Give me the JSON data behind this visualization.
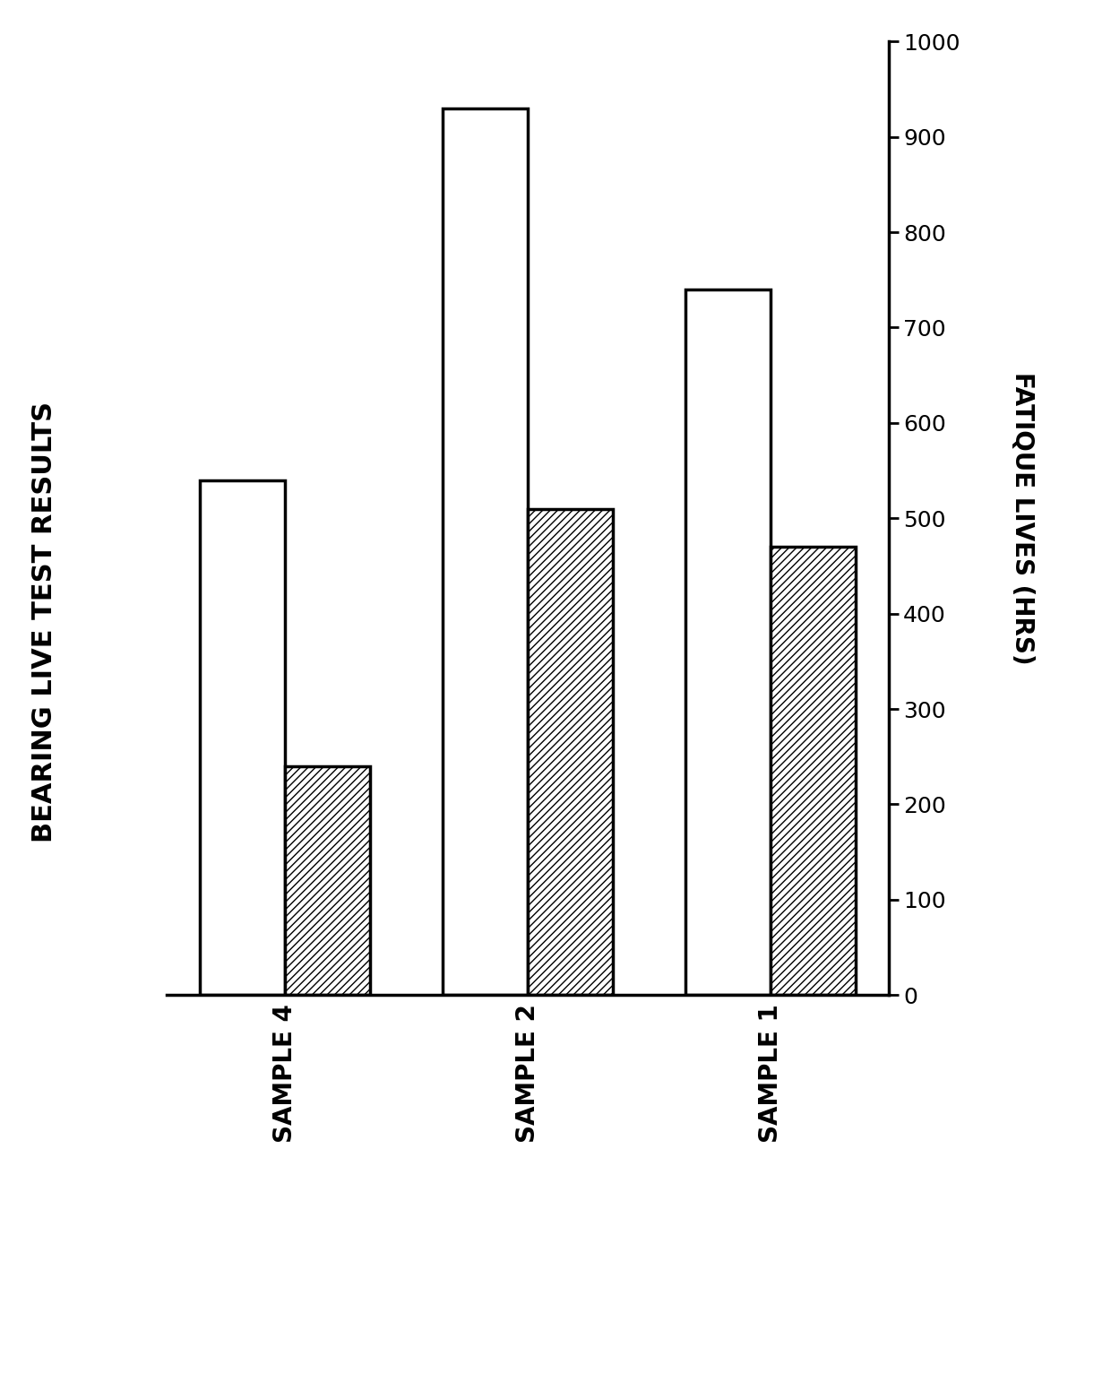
{
  "title": "BEARING LIVE TEST RESULTS",
  "ylabel_right": "FATIQUE LIVES (HRS)",
  "categories": [
    "SAMPLE 4",
    "SAMPLE 2",
    "SAMPLE 1"
  ],
  "white_bars": [
    540,
    930,
    740
  ],
  "hatched_bars": [
    240,
    510,
    470
  ],
  "ylim": [
    0,
    1000
  ],
  "yticks": [
    0,
    100,
    200,
    300,
    400,
    500,
    600,
    700,
    800,
    900,
    1000
  ],
  "bar_width": 0.35,
  "background_color": "#ffffff",
  "bar_edge_color": "#000000",
  "hatch_pattern": "////",
  "title_fontsize": 22,
  "tick_fontsize": 18,
  "ylabel_fontsize": 20,
  "label_fontsize": 20
}
